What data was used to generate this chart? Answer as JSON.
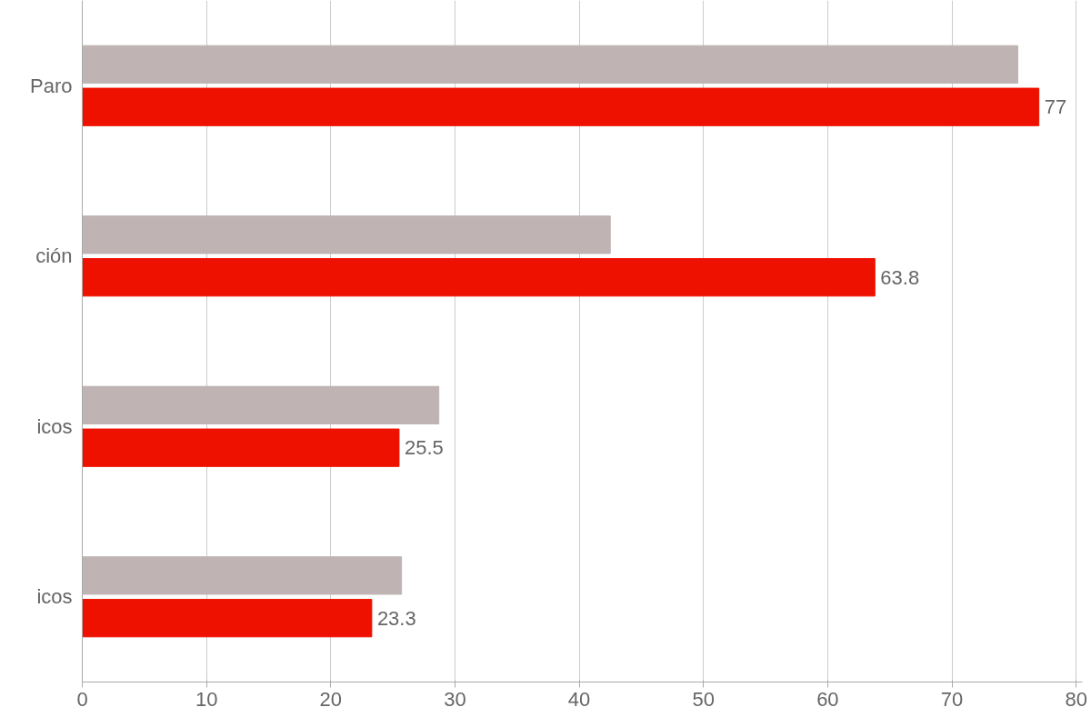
{
  "chart_data": {
    "type": "bar",
    "orientation": "horizontal",
    "categories": [
      "Paro",
      "ción",
      "icos",
      "icos"
    ],
    "series": [
      {
        "color": "#bfb3b3",
        "values": [
          75.3,
          42.5,
          28.7,
          25.7
        ]
      },
      {
        "color": "#ee1100",
        "values": [
          77,
          63.8,
          25.5,
          23.3
        ],
        "value_labels": [
          "77",
          "63.8",
          "25.5",
          "23.3"
        ]
      }
    ],
    "xlim": [
      0,
      80.5
    ],
    "xticks": [
      0,
      10,
      20,
      30,
      40,
      50,
      60,
      70,
      80
    ],
    "grid": "x"
  }
}
